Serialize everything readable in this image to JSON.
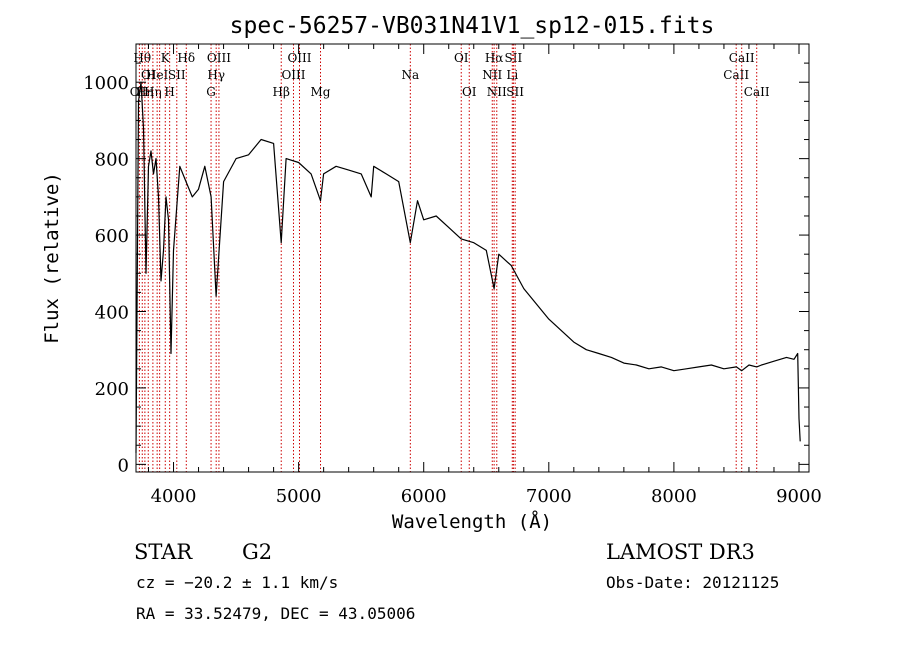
{
  "chart_data": {
    "type": "line",
    "title": "spec-56257-VB031N41V1_sp12-015.fits",
    "xlabel": "Wavelength (Å)",
    "ylabel": "Flux (relative)",
    "xlim": [
      3700,
      9080
    ],
    "ylim": [
      -20,
      1100
    ],
    "x_ticks": [
      4000,
      5000,
      6000,
      7000,
      8000,
      9000
    ],
    "y_ticks": [
      0,
      200,
      400,
      600,
      800,
      1000
    ],
    "grid": false,
    "series": [
      {
        "name": "flux",
        "x": [
          3700,
          3720,
          3740,
          3760,
          3780,
          3800,
          3820,
          3840,
          3860,
          3880,
          3900,
          3920,
          3940,
          3960,
          3980,
          4000,
          4050,
          4100,
          4150,
          4200,
          4250,
          4300,
          4340,
          4400,
          4500,
          4600,
          4700,
          4800,
          4861,
          4900,
          5000,
          5100,
          5175,
          5200,
          5300,
          5400,
          5500,
          5580,
          5600,
          5700,
          5800,
          5893,
          5950,
          6000,
          6100,
          6200,
          6300,
          6400,
          6500,
          6563,
          6600,
          6700,
          6800,
          6900,
          7000,
          7100,
          7200,
          7300,
          7400,
          7500,
          7600,
          7700,
          7800,
          7900,
          8000,
          8100,
          8200,
          8300,
          8400,
          8500,
          8542,
          8600,
          8662,
          8700,
          8800,
          8900,
          8960,
          8990,
          9000,
          9010
        ],
        "y": [
          30,
          950,
          1000,
          880,
          500,
          780,
          820,
          760,
          800,
          700,
          480,
          560,
          700,
          640,
          290,
          560,
          780,
          740,
          700,
          720,
          780,
          700,
          440,
          740,
          800,
          810,
          850,
          840,
          580,
          800,
          790,
          760,
          690,
          760,
          780,
          770,
          760,
          700,
          780,
          760,
          740,
          580,
          690,
          640,
          650,
          620,
          590,
          580,
          560,
          460,
          550,
          520,
          460,
          420,
          380,
          350,
          320,
          300,
          290,
          280,
          265,
          260,
          250,
          255,
          245,
          250,
          255,
          260,
          250,
          255,
          245,
          260,
          255,
          260,
          270,
          280,
          275,
          290,
          120,
          60
        ],
        "color": "#000000"
      }
    ],
    "lines": [
      {
        "wavelength": 3727,
        "label": "OII",
        "row": 3
      },
      {
        "wavelength": 3750,
        "label": "Hθ",
        "row": 1
      },
      {
        "wavelength": 3771,
        "label": "Hη",
        "row": 3
      },
      {
        "wavelength": 3798,
        "label": "OI",
        "row": 2
      },
      {
        "wavelength": 3835,
        "label": "Hη",
        "row": 3
      },
      {
        "wavelength": 3869,
        "label": "HeI",
        "row": 2
      },
      {
        "wavelength": 3889,
        "label": "",
        "row": 0
      },
      {
        "wavelength": 3934,
        "label": "K",
        "row": 1
      },
      {
        "wavelength": 3969,
        "label": "H",
        "row": 3
      },
      {
        "wavelength": 4026,
        "label": "SII",
        "row": 2
      },
      {
        "wavelength": 4102,
        "label": "Hδ",
        "row": 1
      },
      {
        "wavelength": 4300,
        "label": "G",
        "row": 3
      },
      {
        "wavelength": 4341,
        "label": "Hγ",
        "row": 2
      },
      {
        "wavelength": 4363,
        "label": "OIII",
        "row": 1
      },
      {
        "wavelength": 4861,
        "label": "Hβ",
        "row": 3
      },
      {
        "wavelength": 4959,
        "label": "OIII",
        "row": 2
      },
      {
        "wavelength": 5007,
        "label": "OIII",
        "row": 1
      },
      {
        "wavelength": 5175,
        "label": "Mg",
        "row": 3
      },
      {
        "wavelength": 5893,
        "label": "Na",
        "row": 2
      },
      {
        "wavelength": 6300,
        "label": "OI",
        "row": 1
      },
      {
        "wavelength": 6364,
        "label": "OI",
        "row": 3
      },
      {
        "wavelength": 6548,
        "label": "NII",
        "row": 2
      },
      {
        "wavelength": 6563,
        "label": "Hα",
        "row": 1
      },
      {
        "wavelength": 6584,
        "label": "NII",
        "row": 3
      },
      {
        "wavelength": 6708,
        "label": "Li",
        "row": 2
      },
      {
        "wavelength": 6717,
        "label": "SII",
        "row": 1
      },
      {
        "wavelength": 6731,
        "label": "SII",
        "row": 3
      },
      {
        "wavelength": 8498,
        "label": "CaII",
        "row": 2
      },
      {
        "wavelength": 8542,
        "label": "CaII",
        "row": 1
      },
      {
        "wavelength": 8662,
        "label": "CaII",
        "row": 3
      }
    ],
    "line_color": "#cc0000"
  },
  "info": {
    "class": "STAR",
    "subclass": "G2",
    "survey": "LAMOST DR3",
    "cz": "cz = −20.2 ± 1.1 km/s",
    "obs_date": "Obs-Date: 20121125",
    "coords": "RA =  33.52479, DEC =  43.05006"
  }
}
